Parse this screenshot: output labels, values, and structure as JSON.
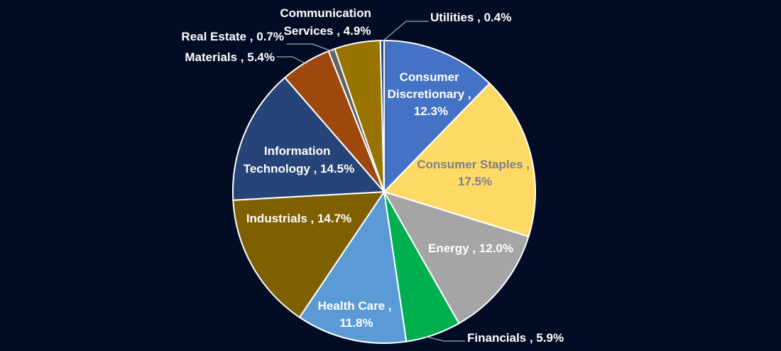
{
  "chart_data": {
    "type": "pie",
    "title": "",
    "start_angle_deg": 0,
    "direction": "clockwise",
    "slices": [
      {
        "label": "Consumer Discretionary",
        "value": 12.3,
        "color": "#4472c4"
      },
      {
        "label": "Consumer Staples",
        "value": 17.5,
        "color": "#ffd966"
      },
      {
        "label": "Energy",
        "value": 12.0,
        "color": "#a5a5a5"
      },
      {
        "label": "Financials",
        "value": 5.9,
        "color": "#00b050"
      },
      {
        "label": "Health Care",
        "value": 11.8,
        "color": "#5b9bd5"
      },
      {
        "label": "Industrials",
        "value": 14.7,
        "color": "#7f6000"
      },
      {
        "label": "Information Technology",
        "value": 14.5,
        "color": "#264478"
      },
      {
        "label": "Materials",
        "value": 5.4,
        "color": "#9e480e"
      },
      {
        "label": "Real Estate",
        "value": 0.7,
        "color": "#636363"
      },
      {
        "label": "Communication Services",
        "value": 4.9,
        "color": "#997300"
      },
      {
        "label": "Utilities",
        "value": 0.4,
        "color": "#264478"
      }
    ],
    "label_format": "{label} , {value}%",
    "legend": "none",
    "background": "#020c24"
  },
  "labels": {
    "consumer_discretionary": [
      "Consumer",
      "Discretionary ,",
      "12.3%"
    ],
    "consumer_staples": [
      "Consumer Staples ,",
      "17.5%"
    ],
    "energy": "Energy , 12.0%",
    "financials": "Financials , 5.9%",
    "health_care": [
      "Health Care ,",
      "11.8%"
    ],
    "industrials": "Industrials  , 14.7%",
    "information_technology": [
      "Information",
      "Technology , 14.5%"
    ],
    "materials": "Materials , 5.4%",
    "real_estate": "Real Estate  , 0.7%",
    "communication_services": [
      "Communication",
      "Services , 4.9%"
    ],
    "utilities": "Utilities , 0.4%"
  }
}
